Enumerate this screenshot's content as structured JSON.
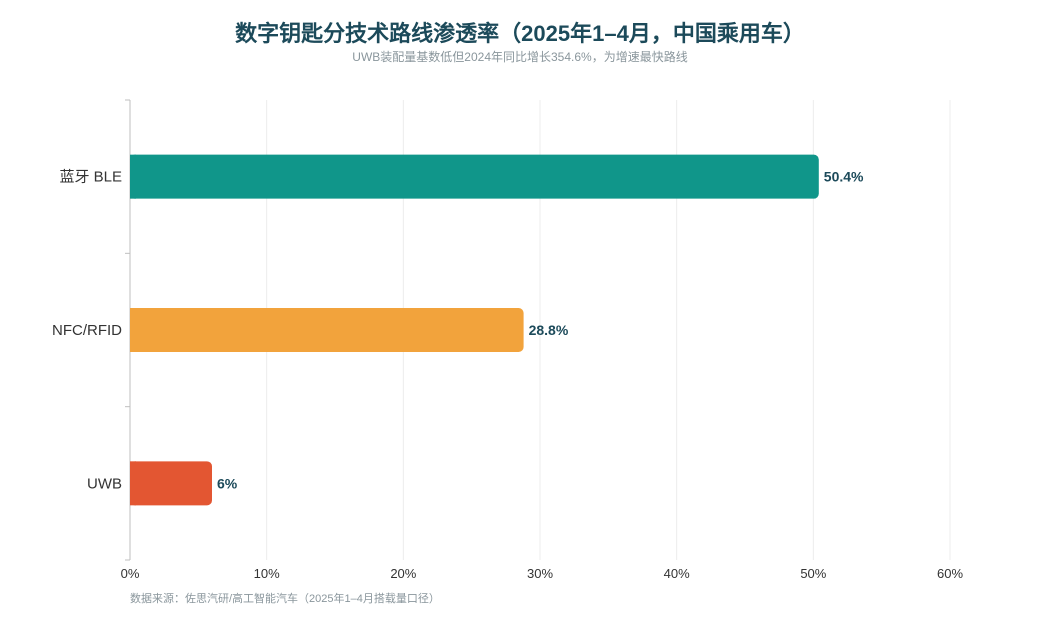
{
  "chart_data": {
    "type": "bar",
    "orientation": "horizontal",
    "title": "数字钥匙分技术路线渗透率（2025年1–4月，中国乘用车）",
    "subtitle": "UWB装配量基数低但2024年同比增长354.6%，为增速最快路线",
    "categories": [
      "蓝牙 BLE",
      "NFC/RFID",
      "UWB"
    ],
    "values": [
      50.4,
      28.8,
      6
    ],
    "value_labels": [
      "50.4%",
      "28.8%",
      "6%"
    ],
    "colors": [
      "#10968a",
      "#f2a33c",
      "#e35632"
    ],
    "xlim": [
      0,
      60
    ],
    "xticks": [
      "0%",
      "10%",
      "20%",
      "30%",
      "40%",
      "50%",
      "60%"
    ],
    "grid": true,
    "source": "数据来源：佐思汽研/高工智能汽车（2025年1–4月搭载量口径）"
  }
}
